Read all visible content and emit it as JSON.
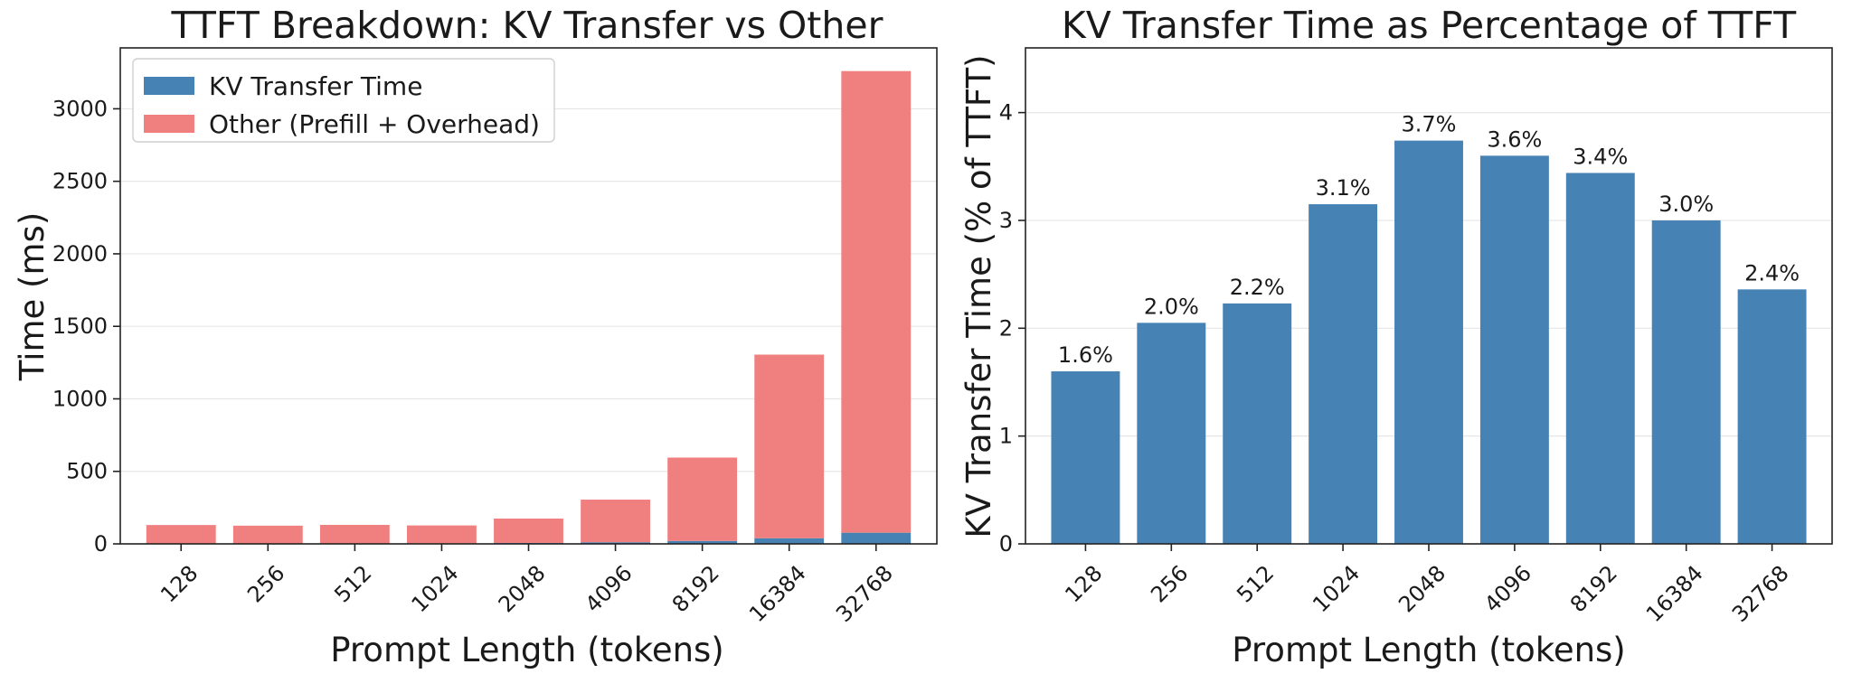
{
  "chart_data": [
    {
      "type": "bar",
      "stacked": true,
      "title": "TTFT Breakdown: KV Transfer vs Other",
      "xlabel": "Prompt Length (tokens)",
      "ylabel": "Time (ms)",
      "categories": [
        "128",
        "256",
        "512",
        "1024",
        "2048",
        "4096",
        "8192",
        "16384",
        "32768"
      ],
      "series": [
        {
          "name": "KV Transfer Time",
          "color": "#4682b4",
          "values": [
            2,
            2.5,
            3,
            4,
            6.5,
            11,
            20,
            39,
            77
          ]
        },
        {
          "name": "Other (Prefill + Overhead)",
          "color": "#f08080",
          "values": [
            128,
            123,
            128,
            123,
            168,
            294,
            575,
            1266,
            3183
          ]
        }
      ],
      "ylim": [
        0,
        3420
      ],
      "yticks": [
        0,
        500,
        1000,
        1500,
        2000,
        2500,
        3000
      ],
      "grid": "y",
      "legend": "top-left"
    },
    {
      "type": "bar",
      "title": "KV Transfer Time as Percentage of TTFT",
      "xlabel": "Prompt Length (tokens)",
      "ylabel": "KV Transfer Time (% of TTFT)",
      "categories": [
        "128",
        "256",
        "512",
        "1024",
        "2048",
        "4096",
        "8192",
        "16384",
        "32768"
      ],
      "color": "#4682b4",
      "values": [
        1.6,
        2.05,
        2.23,
        3.15,
        3.74,
        3.6,
        3.44,
        3.0,
        2.36
      ],
      "data_labels": [
        "1.6%",
        "2.0%",
        "2.2%",
        "3.1%",
        "3.7%",
        "3.6%",
        "3.4%",
        "3.0%",
        "2.4%"
      ],
      "ylim": [
        0,
        4.6
      ],
      "yticks": [
        0,
        1,
        2,
        3,
        4
      ],
      "grid": "y"
    }
  ]
}
